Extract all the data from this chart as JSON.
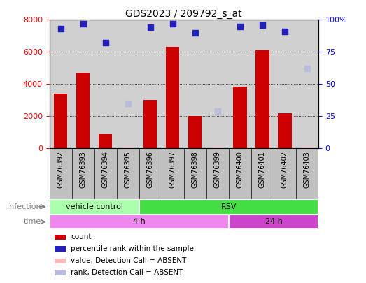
{
  "title": "GDS2023 / 209792_s_at",
  "samples": [
    "GSM76392",
    "GSM76393",
    "GSM76394",
    "GSM76395",
    "GSM76396",
    "GSM76397",
    "GSM76398",
    "GSM76399",
    "GSM76400",
    "GSM76401",
    "GSM76402",
    "GSM76403"
  ],
  "count_values": [
    3400,
    4700,
    900,
    60,
    3000,
    6300,
    2000,
    70,
    3850,
    6100,
    2200,
    60
  ],
  "percentile_values": [
    93,
    97,
    82,
    null,
    94,
    97,
    90,
    null,
    95,
    96,
    91,
    null
  ],
  "absent_count": [
    null,
    null,
    null,
    60,
    null,
    null,
    null,
    70,
    null,
    null,
    null,
    60
  ],
  "absent_rank": [
    null,
    null,
    null,
    35,
    null,
    null,
    null,
    29,
    null,
    null,
    null,
    null
  ],
  "absent_rank_403": [
    null,
    null,
    null,
    null,
    null,
    null,
    null,
    null,
    null,
    null,
    null,
    62
  ],
  "ylim_left": [
    0,
    8000
  ],
  "ylim_right": [
    0,
    100
  ],
  "yticks_left": [
    0,
    2000,
    4000,
    6000,
    8000
  ],
  "yticks_right": [
    0,
    25,
    50,
    75,
    100
  ],
  "ytick_right_labels": [
    "0",
    "25",
    "50",
    "75",
    "100%"
  ],
  "bar_color": "#cc0000",
  "dot_color": "#2222bb",
  "absent_bar_color": "#ffbbbb",
  "absent_dot_color": "#bbbbdd",
  "grid_color": "#000000",
  "bg_color": "#d0d0d0",
  "xlabel_bg": "#c0c0c0",
  "infection_groups": [
    {
      "label": "vehicle control",
      "start": 0,
      "end": 4,
      "color": "#aaffaa"
    },
    {
      "label": "RSV",
      "start": 4,
      "end": 12,
      "color": "#44dd44"
    }
  ],
  "time_groups": [
    {
      "label": "4 h",
      "start": 0,
      "end": 8,
      "color": "#ee88ee"
    },
    {
      "label": "24 h",
      "start": 8,
      "end": 12,
      "color": "#cc44cc"
    }
  ],
  "legend_items": [
    {
      "color": "#cc0000",
      "label": "count"
    },
    {
      "color": "#2222bb",
      "label": "percentile rank within the sample"
    },
    {
      "color": "#ffbbbb",
      "label": "value, Detection Call = ABSENT"
    },
    {
      "color": "#bbbbdd",
      "label": "rank, Detection Call = ABSENT"
    }
  ]
}
